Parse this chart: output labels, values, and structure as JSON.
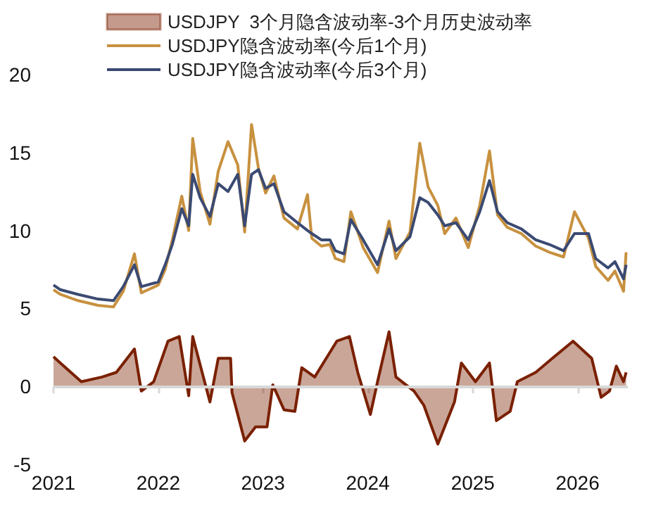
{
  "chart_data": {
    "type": "line",
    "legend": "top",
    "grid": false,
    "xlim": [
      "2021-01-01",
      "2026-06-25"
    ],
    "xticks": [
      "2021",
      "2022",
      "2023",
      "2024",
      "2025",
      "2026"
    ],
    "ylim": [
      -5,
      20
    ],
    "ref_lines": [
      {
        "axis": "y",
        "value": 0,
        "color": "#d8d8d8"
      }
    ],
    "yticks": [
      -5,
      0,
      5,
      10,
      15,
      20
    ],
    "x": [
      "2021-01-01",
      "2021-01-25",
      "2021-03-28",
      "2021-06-05",
      "2021-07-29",
      "2021-09-01",
      "2021-10-10",
      "2021-11-03",
      "2022-01-01",
      "2022-01-25",
      "2022-02-19",
      "2022-03-24",
      "2022-04-17",
      "2022-05-01",
      "2022-05-27",
      "2022-06-30",
      "2022-07-29",
      "2022-09-01",
      "2022-10-05",
      "2022-10-29",
      "2022-11-22",
      "2022-12-16",
      "2023-01-10",
      "2023-02-08",
      "2023-03-15",
      "2023-05-01",
      "2023-06-05",
      "2023-06-20",
      "2023-07-23",
      "2023-08-22",
      "2023-09-10",
      "2023-10-10",
      "2023-11-03",
      "2023-12-16",
      "2024-02-04",
      "2024-03-15",
      "2024-04-08",
      "2024-05-27",
      "2024-06-30",
      "2024-07-29",
      "2024-09-01",
      "2024-09-25",
      "2024-11-03",
      "2024-12-16",
      "2025-01-25",
      "2025-02-28",
      "2025-03-28",
      "2025-05-01",
      "2025-06-19",
      "2025-08-08",
      "2025-09-25",
      "2025-11-13",
      "2025-12-21",
      "2026-02-08",
      "2026-03-05",
      "2026-04-17",
      "2026-05-11",
      "2026-06-10",
      "2026-06-19"
    ],
    "series": [
      {
        "name": "USDJPY  3个月隐含波动率-3个月历史波动率",
        "type": "area",
        "color": "#7a2000",
        "x": [
          "2021-01-01",
          "2021-01-25",
          "2021-04-08",
          "2021-06-19",
          "2021-08-08",
          "2021-10-10",
          "2021-11-03",
          "2021-12-16",
          "2022-02-04",
          "2022-03-15",
          "2022-04-17",
          "2022-05-01",
          "2022-06-30",
          "2022-07-29",
          "2022-09-10",
          "2022-09-15",
          "2022-10-29",
          "2022-12-06",
          "2023-01-15",
          "2023-02-04",
          "2023-03-15",
          "2023-04-22",
          "2023-05-16",
          "2023-06-30",
          "2023-09-15",
          "2023-10-29",
          "2023-11-27",
          "2024-01-10",
          "2024-02-04",
          "2024-03-15",
          "2024-04-08",
          "2024-06-10",
          "2024-07-14",
          "2024-09-01",
          "2024-10-29",
          "2024-11-22",
          "2025-01-10",
          "2025-02-28",
          "2025-03-24",
          "2025-05-11",
          "2025-06-05",
          "2025-08-08",
          "2025-10-05",
          "2025-12-16",
          "2026-02-19",
          "2026-03-24",
          "2026-04-22",
          "2026-05-16",
          "2026-06-10",
          "2026-06-19"
        ],
        "values": [
          1.9,
          1.5,
          0.3,
          0.6,
          0.9,
          2.4,
          -0.3,
          0.3,
          2.9,
          3.2,
          -0.6,
          3.2,
          -1.0,
          1.8,
          1.8,
          -0.4,
          -3.5,
          -2.6,
          -2.6,
          0.1,
          -1.5,
          -1.6,
          1.2,
          0.6,
          2.9,
          3.2,
          0.9,
          -1.8,
          0.3,
          3.5,
          0.6,
          -0.3,
          -1.2,
          -3.7,
          -1.0,
          1.5,
          0.3,
          1.5,
          -2.2,
          -1.6,
          0.3,
          0.9,
          1.8,
          2.9,
          1.8,
          -0.7,
          -0.3,
          1.3,
          0.3,
          0.9
        ]
      },
      {
        "name": "USDJPY隐含波动率(今后1个月)",
        "color": "#c8913f",
        "values": [
          6.2,
          5.9,
          5.5,
          5.2,
          5.1,
          6.1,
          8.5,
          6.0,
          6.5,
          7.5,
          9.4,
          12.2,
          10.0,
          15.9,
          12.5,
          10.4,
          13.8,
          15.7,
          14.2,
          9.9,
          16.8,
          14.0,
          12.4,
          13.5,
          10.8,
          10.1,
          12.3,
          9.5,
          9.0,
          9.1,
          8.2,
          8.0,
          11.2,
          8.9,
          7.3,
          10.6,
          8.2,
          9.9,
          15.6,
          12.8,
          11.6,
          9.8,
          10.8,
          8.9,
          11.6,
          15.1,
          11.0,
          10.2,
          9.8,
          9.0,
          8.6,
          8.3,
          11.2,
          9.5,
          7.7,
          6.8,
          7.4,
          6.1,
          8.6
        ]
      },
      {
        "name": "USDJPY隐含波动率(今后3个月)",
        "color": "#3b4a72",
        "values": [
          6.5,
          6.2,
          5.9,
          5.6,
          5.5,
          6.4,
          7.8,
          6.4,
          6.7,
          7.8,
          9.1,
          11.4,
          10.3,
          13.6,
          12.1,
          10.9,
          13.0,
          12.5,
          13.6,
          10.3,
          13.6,
          13.9,
          12.7,
          13.0,
          11.2,
          10.5,
          10.0,
          9.8,
          9.4,
          9.4,
          8.7,
          8.5,
          10.7,
          9.4,
          7.8,
          10.1,
          8.7,
          9.6,
          12.1,
          11.8,
          11.0,
          10.3,
          10.5,
          9.4,
          11.2,
          13.2,
          11.2,
          10.5,
          10.1,
          9.4,
          9.1,
          8.7,
          9.8,
          9.8,
          8.2,
          7.6,
          8.0,
          6.9,
          7.8
        ]
      }
    ]
  }
}
